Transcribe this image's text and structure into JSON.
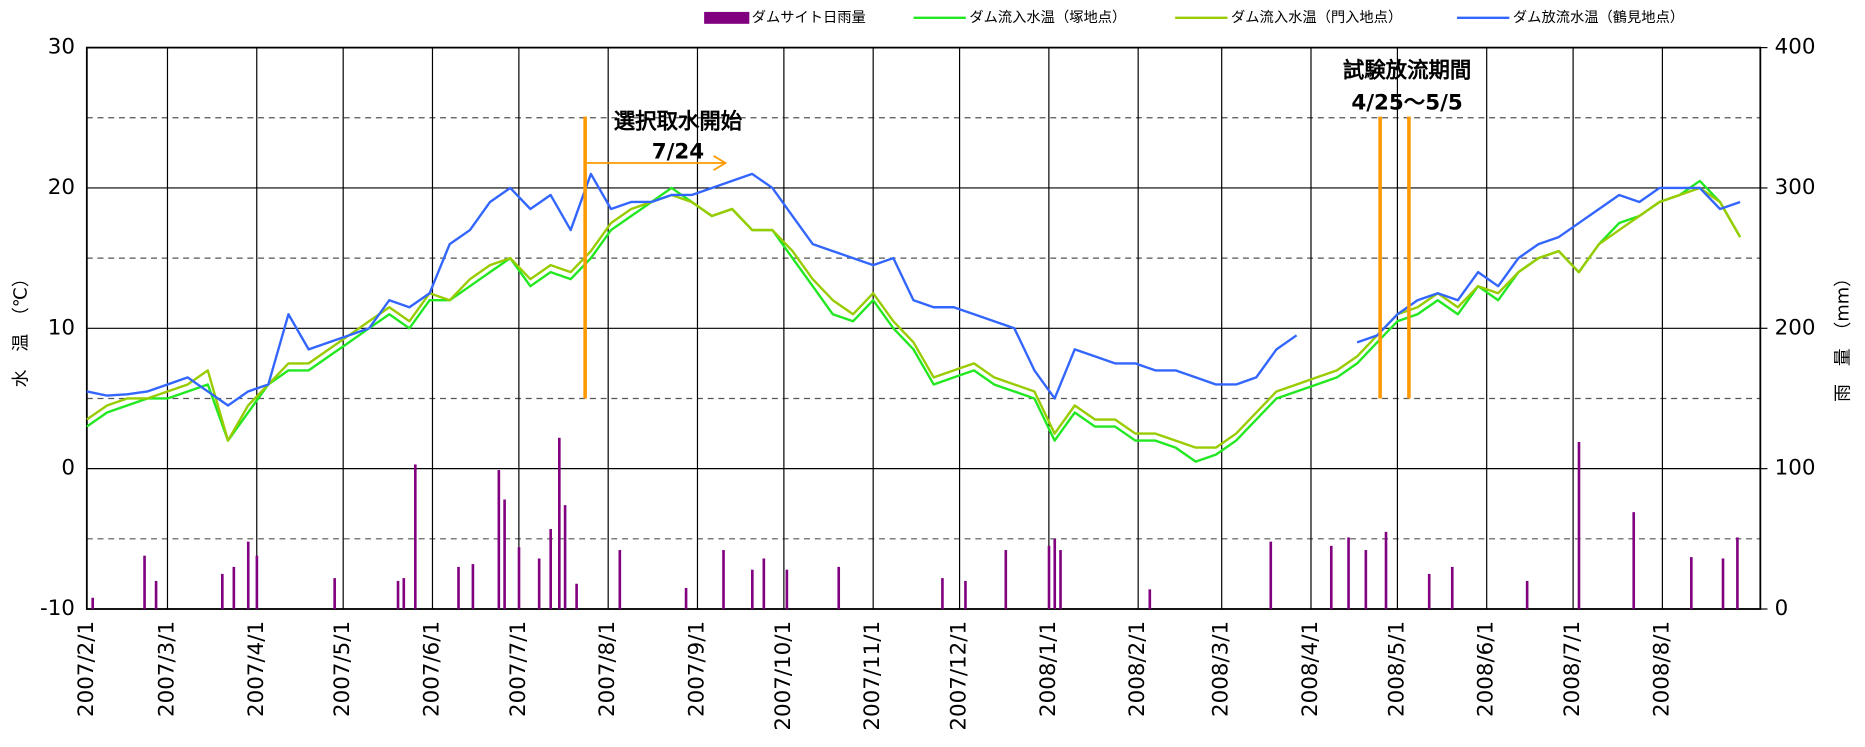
{
  "chart_data": {
    "type": "line",
    "ylabel": "水　温　（℃）",
    "y2label": "雨　量　（mm）",
    "ylim": [
      -10,
      30
    ],
    "yticks": [
      -10,
      0,
      10,
      20,
      30
    ],
    "y_minor_ticks": [
      -5,
      5,
      15,
      25
    ],
    "y2lim": [
      0,
      400
    ],
    "y2ticks": [
      0,
      100,
      200,
      300,
      400
    ],
    "xlim": [
      "2007/2/1",
      "2008/9/4"
    ],
    "xticks": [
      "2007/2/1",
      "2007/3/1",
      "2007/4/1",
      "2007/5/1",
      "2007/6/1",
      "2007/7/1",
      "2007/8/1",
      "2007/9/1",
      "2007/10/1",
      "2007/11/1",
      "2007/12/1",
      "2008/1/1",
      "2008/2/1",
      "2008/3/1",
      "2008/4/1",
      "2008/5/1",
      "2008/6/1",
      "2008/7/1",
      "2008/8/1"
    ],
    "grid": true,
    "annotations": [
      {
        "text": "選択取水開始"
      },
      {
        "text": "7/24"
      },
      {
        "text": "試験放流期間"
      },
      {
        "text": "4/25～5/5"
      }
    ],
    "marker_dates": [
      "2007/7/24",
      "2008/4/25",
      "2008/5/5"
    ],
    "marker_color": "#ff9900",
    "x": [
      "2007/2/1",
      "2007/2/8",
      "2007/2/15",
      "2007/2/22",
      "2007/3/1",
      "2007/3/8",
      "2007/3/15",
      "2007/3/22",
      "2007/3/29",
      "2007/4/5",
      "2007/4/12",
      "2007/4/19",
      "2007/4/26",
      "2007/5/3",
      "2007/5/10",
      "2007/5/17",
      "2007/5/24",
      "2007/5/31",
      "2007/6/7",
      "2007/6/14",
      "2007/6/21",
      "2007/6/28",
      "2007/7/5",
      "2007/7/12",
      "2007/7/19",
      "2007/7/26",
      "2007/8/2",
      "2007/8/9",
      "2007/8/16",
      "2007/8/23",
      "2007/8/30",
      "2007/9/6",
      "2007/9/13",
      "2007/9/20",
      "2007/9/27",
      "2007/10/4",
      "2007/10/11",
      "2007/10/18",
      "2007/10/25",
      "2007/11/1",
      "2007/11/8",
      "2007/11/15",
      "2007/11/22",
      "2007/11/29",
      "2007/12/6",
      "2007/12/13",
      "2007/12/20",
      "2007/12/27",
      "2008/1/3",
      "2008/1/10",
      "2008/1/17",
      "2008/1/24",
      "2008/1/31",
      "2008/2/7",
      "2008/2/14",
      "2008/2/21",
      "2008/2/28",
      "2008/3/6",
      "2008/3/13",
      "2008/3/20",
      "2008/3/27",
      "2008/4/3",
      "2008/4/10",
      "2008/4/17",
      "2008/4/24",
      "2008/5/1",
      "2008/5/8",
      "2008/5/15",
      "2008/5/22",
      "2008/5/29",
      "2008/6/5",
      "2008/6/12",
      "2008/6/19",
      "2008/6/26",
      "2008/7/3",
      "2008/7/10",
      "2008/7/17",
      "2008/7/24",
      "2008/7/31",
      "2008/8/7",
      "2008/8/14",
      "2008/8/21",
      "2008/8/28"
    ],
    "series": [
      {
        "name": "ダムサイト日雨量",
        "color": "#800080",
        "type": "bar",
        "axis": "y2",
        "x": [
          "2007/2/3",
          "2007/2/21",
          "2007/2/25",
          "2007/3/20",
          "2007/3/24",
          "2007/3/29",
          "2007/4/1",
          "2007/4/28",
          "2007/5/20",
          "2007/5/22",
          "2007/5/26",
          "2007/6/10",
          "2007/6/15",
          "2007/6/24",
          "2007/6/26",
          "2007/7/1",
          "2007/7/8",
          "2007/7/12",
          "2007/7/15",
          "2007/7/17",
          "2007/7/21",
          "2007/8/5",
          "2007/8/28",
          "2007/9/10",
          "2007/9/20",
          "2007/9/24",
          "2007/10/2",
          "2007/10/20",
          "2007/11/25",
          "2007/12/3",
          "2007/12/17",
          "2008/1/1",
          "2008/1/3",
          "2008/1/5",
          "2008/2/5",
          "2008/3/18",
          "2008/4/8",
          "2008/4/14",
          "2008/4/20",
          "2008/4/27",
          "2008/5/12",
          "2008/5/20",
          "2008/6/15",
          "2008/7/3",
          "2008/7/22",
          "2008/8/11",
          "2008/8/22",
          "2008/8/27"
        ],
        "values": [
          8,
          38,
          20,
          25,
          30,
          48,
          38,
          22,
          20,
          22,
          103,
          30,
          32,
          99,
          78,
          44,
          36,
          57,
          122,
          74,
          18,
          42,
          15,
          42,
          28,
          36,
          28,
          30,
          22,
          20,
          42,
          45,
          50,
          42,
          14,
          48,
          45,
          51,
          42,
          55,
          25,
          30,
          20,
          119,
          69,
          37,
          36,
          51
        ]
      },
      {
        "name": "ダム流入水温（塚地点）",
        "color": "#22e822",
        "type": "line",
        "values": [
          3,
          4,
          4.5,
          5,
          5,
          5.5,
          6,
          2,
          4,
          6,
          7,
          7,
          8,
          9,
          10,
          11,
          10,
          12,
          12,
          13,
          14,
          15,
          13,
          14,
          13.5,
          15,
          17,
          18,
          19,
          20,
          19,
          18,
          18.5,
          17,
          17,
          15,
          13,
          11,
          10.5,
          12,
          10,
          8.5,
          6,
          6.5,
          7,
          6,
          5.5,
          5,
          2,
          4,
          3,
          3,
          2,
          2,
          1.5,
          0.5,
          1,
          2,
          3.5,
          5,
          5.5,
          6,
          6.5,
          7.5,
          9,
          10.5,
          11,
          12,
          11,
          13,
          12,
          14,
          15,
          15.5,
          14,
          16,
          17.5,
          18,
          19,
          19.5,
          20.5,
          19,
          16.5
        ]
      },
      {
        "name": "ダム流入水温（門入地点）",
        "color": "#99cc00",
        "type": "line",
        "values": [
          3.5,
          4.5,
          5,
          5,
          5.5,
          6,
          7,
          2,
          4.5,
          6,
          7.5,
          7.5,
          8.5,
          9.5,
          10.5,
          11.5,
          10.5,
          12.5,
          12,
          13.5,
          14.5,
          15,
          13.5,
          14.5,
          14,
          15.5,
          17.5,
          18.5,
          19,
          19.5,
          19,
          18,
          18.5,
          17,
          17,
          15.5,
          13.5,
          12,
          11,
          12.5,
          10.5,
          9,
          6.5,
          7,
          7.5,
          6.5,
          6,
          5.5,
          2.5,
          4.5,
          3.5,
          3.5,
          2.5,
          2.5,
          2,
          1.5,
          1.5,
          2.5,
          4,
          5.5,
          6,
          6.5,
          7,
          8,
          9.5,
          11,
          11.5,
          12.5,
          11.5,
          13,
          12.5,
          14,
          15,
          15.5,
          14,
          16,
          17,
          18,
          19,
          19.5,
          20,
          19,
          16.5
        ]
      },
      {
        "name": "ダム放流水温（鶴見地点）",
        "color": "#3366ff",
        "type": "line",
        "values": [
          5.5,
          5.2,
          5.3,
          5.5,
          6,
          6.5,
          5.5,
          4.5,
          5.5,
          6,
          11,
          8.5,
          9,
          9.5,
          10,
          12,
          11.5,
          12.5,
          16,
          17,
          19,
          20,
          18.5,
          19.5,
          17,
          21,
          18.5,
          19,
          19,
          19.5,
          19.5,
          20,
          20.5,
          21,
          20,
          18,
          16,
          15.5,
          15,
          14.5,
          15,
          12,
          11.5,
          11.5,
          11,
          10.5,
          10,
          7,
          5,
          8.5,
          8,
          7.5,
          7.5,
          7,
          7,
          6.5,
          6,
          6,
          6.5,
          8.5,
          9.5,
          null,
          null,
          9,
          9.5,
          11,
          12,
          12.5,
          12,
          14,
          13,
          15,
          16,
          16.5,
          17.5,
          18.5,
          19.5,
          19,
          20,
          20,
          20,
          18.5,
          19
        ]
      }
    ]
  }
}
